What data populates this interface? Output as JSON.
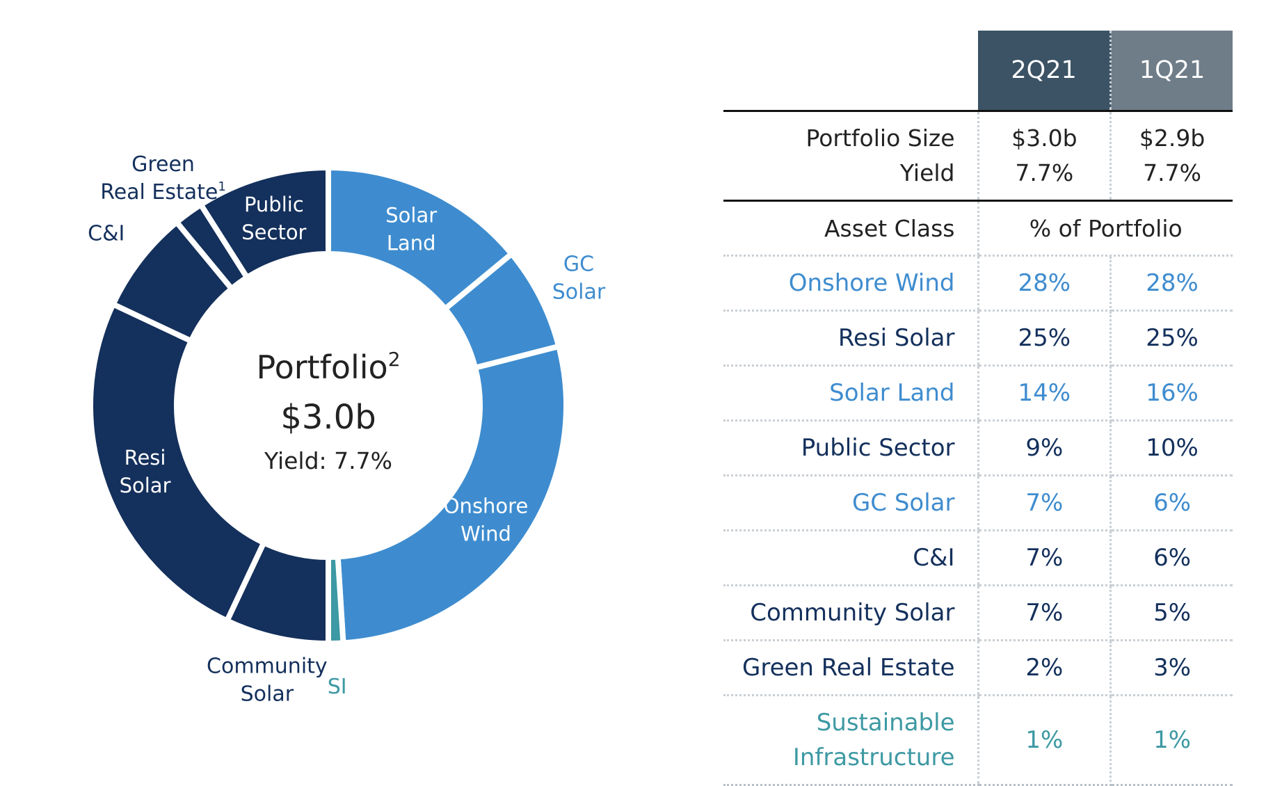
{
  "colors": {
    "light_blue": "#3e8ccf",
    "dark_navy": "#14305c",
    "teal": "#3d99a3",
    "header_current": "#3b5364",
    "header_previous": "#6f7d89",
    "text_dark": "#222222"
  },
  "chart_data": {
    "type": "pie",
    "variant": "donut",
    "center": {
      "title": "Portfolio",
      "title_superscript": "2",
      "value": "$3.0b",
      "yield_text": "Yield: 7.7%"
    },
    "slices": [
      {
        "name": "Solar Land",
        "label_lines": [
          "Solar",
          "Land"
        ],
        "value": 14,
        "color": "#3e8ccf",
        "label_placement": "inside"
      },
      {
        "name": "GC Solar",
        "label_lines": [
          "GC",
          "Solar"
        ],
        "value": 7,
        "color": "#3e8ccf",
        "label_placement": "outside"
      },
      {
        "name": "Onshore Wind",
        "label_lines": [
          "Onshore",
          "Wind"
        ],
        "value": 28,
        "color": "#3e8ccf",
        "label_placement": "inside"
      },
      {
        "name": "SI",
        "label_lines": [
          "SI"
        ],
        "value": 1,
        "color": "#3d99a3",
        "label_placement": "outside"
      },
      {
        "name": "Community Solar",
        "label_lines": [
          "Community",
          "Solar"
        ],
        "value": 7,
        "color": "#14305c",
        "label_placement": "outside"
      },
      {
        "name": "Resi Solar",
        "label_lines": [
          "Resi",
          "Solar"
        ],
        "value": 25,
        "color": "#14305c",
        "label_placement": "inside"
      },
      {
        "name": "C&I",
        "label_lines": [
          "C&I"
        ],
        "value": 7,
        "color": "#14305c",
        "label_placement": "outside"
      },
      {
        "name": "Green Real Estate",
        "label_lines": [
          "Green",
          "Real Estate"
        ],
        "label_superscript": "1",
        "value": 2,
        "color": "#14305c",
        "label_placement": "outside"
      },
      {
        "name": "Public Sector",
        "label_lines": [
          "Public",
          "Sector"
        ],
        "value": 9,
        "color": "#14305c",
        "label_placement": "inside"
      }
    ]
  },
  "table": {
    "columns": [
      "2Q21",
      "1Q21"
    ],
    "summary": [
      {
        "label": "Portfolio Size",
        "values": [
          "$3.0b",
          "$2.9b"
        ]
      },
      {
        "label": "Yield",
        "values": [
          "7.7%",
          "7.7%"
        ]
      }
    ],
    "section_header": {
      "label": "Asset Class",
      "value": "% of Portfolio"
    },
    "rows": [
      {
        "label": "Onshore Wind",
        "values": [
          "28%",
          "28%"
        ],
        "color": "#3e8ccf"
      },
      {
        "label": "Resi Solar",
        "values": [
          "25%",
          "25%"
        ],
        "color": "#14305c"
      },
      {
        "label": "Solar Land",
        "values": [
          "14%",
          "16%"
        ],
        "color": "#3e8ccf"
      },
      {
        "label": "Public Sector",
        "values": [
          "9%",
          "10%"
        ],
        "color": "#14305c"
      },
      {
        "label": "GC Solar",
        "values": [
          "7%",
          "6%"
        ],
        "color": "#3e8ccf"
      },
      {
        "label": "C&I",
        "values": [
          "7%",
          "6%"
        ],
        "color": "#14305c"
      },
      {
        "label": "Community Solar",
        "values": [
          "7%",
          "5%"
        ],
        "color": "#14305c"
      },
      {
        "label": "Green Real Estate",
        "values": [
          "2%",
          "3%"
        ],
        "color": "#14305c"
      },
      {
        "label": "Sustainable Infrastructure",
        "label_lines": [
          "Sustainable",
          "Infrastructure"
        ],
        "values": [
          "1%",
          "1%"
        ],
        "color": "#3d99a3"
      }
    ]
  }
}
